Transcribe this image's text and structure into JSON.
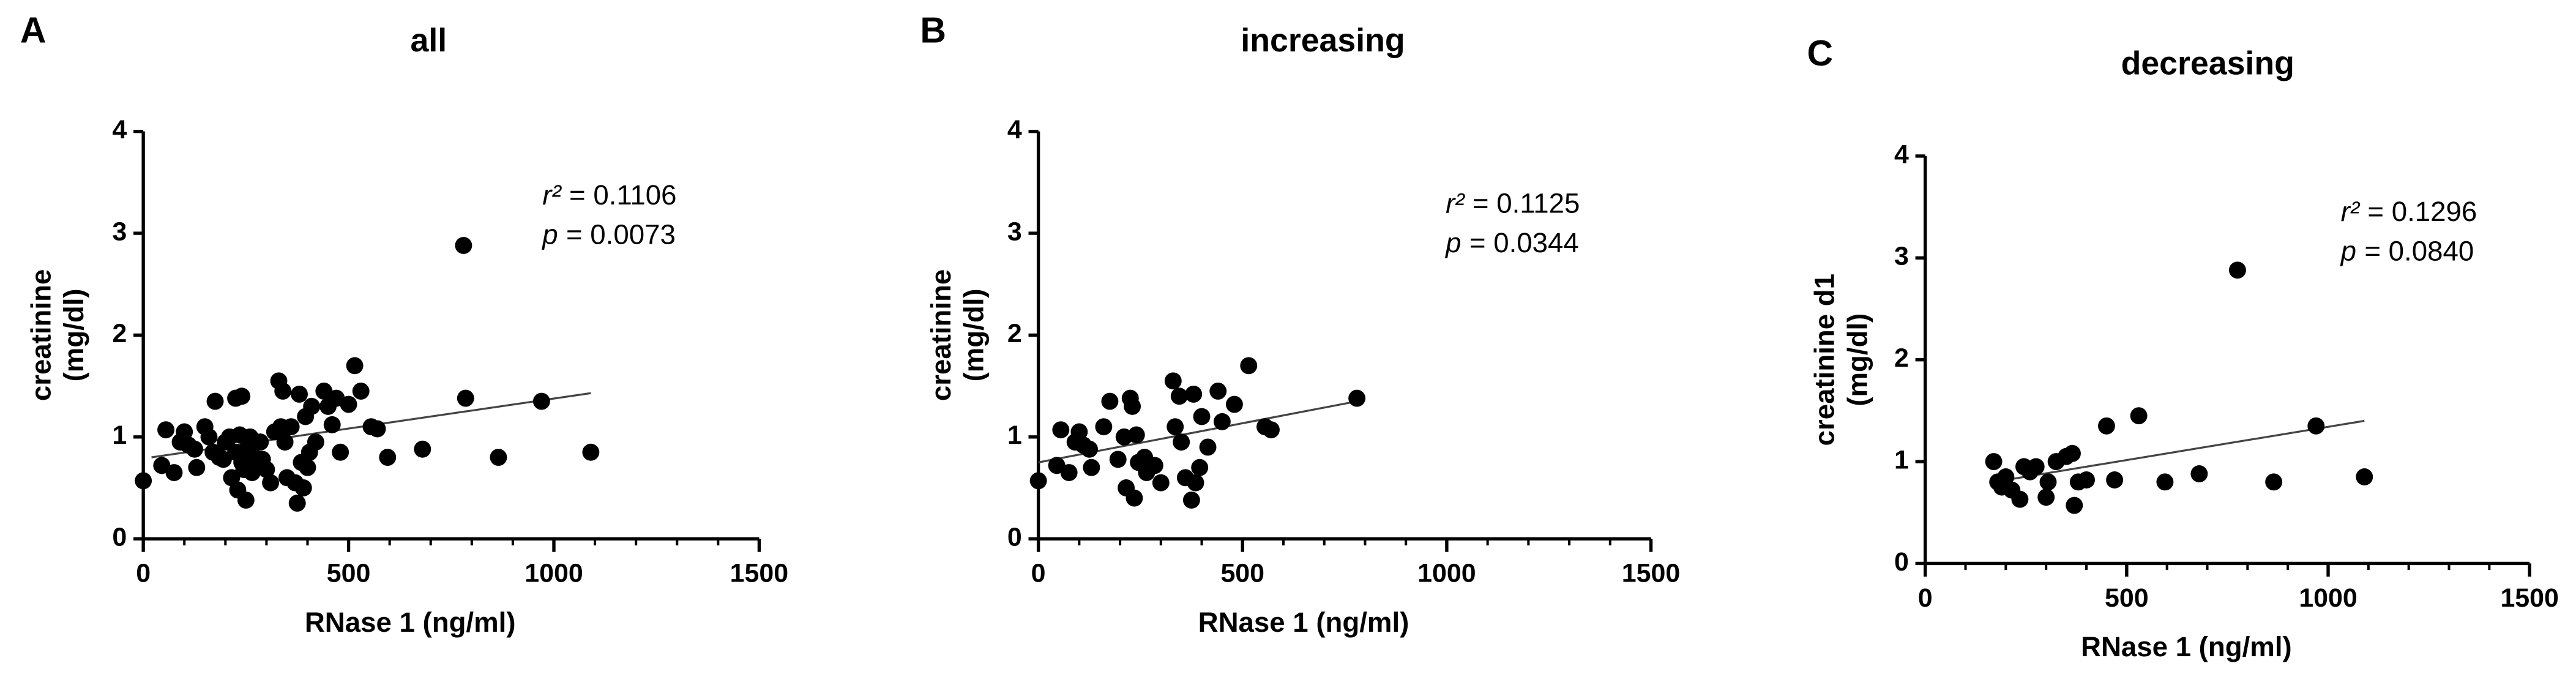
{
  "chart_data": [
    {
      "type": "scatter",
      "panel": "A",
      "title": "all",
      "xlabel": "RNase 1 (ng/ml)",
      "ylabel": [
        "creatinine",
        "(mg/dl)"
      ],
      "xlim": [
        0,
        1500
      ],
      "xticks": [
        0,
        500,
        1000,
        1500
      ],
      "xminorticks": [
        0,
        100,
        200,
        300,
        400,
        500,
        600,
        700,
        800,
        900,
        1000,
        1100,
        1200,
        1300,
        1400,
        1500
      ],
      "ylim": [
        0,
        4
      ],
      "yticks": [
        0,
        1,
        2,
        3,
        4
      ],
      "color": "#000000",
      "annotations": [
        [
          "r²",
          "= 0.1106"
        ],
        [
          "p",
          "= 0.0073"
        ]
      ],
      "fit": {
        "x": [
          20,
          1090
        ],
        "y": [
          0.8,
          1.43
        ]
      },
      "x": [
        0,
        45,
        55,
        75,
        90,
        100,
        110,
        125,
        130,
        150,
        160,
        170,
        175,
        185,
        195,
        200,
        210,
        215,
        225,
        225,
        230,
        235,
        240,
        240,
        245,
        250,
        255,
        260,
        265,
        270,
        275,
        285,
        290,
        300,
        310,
        320,
        330,
        335,
        340,
        345,
        350,
        360,
        370,
        375,
        380,
        385,
        390,
        395,
        400,
        405,
        410,
        420,
        440,
        450,
        460,
        470,
        480,
        500,
        515,
        530,
        555,
        570,
        595,
        680,
        780,
        785,
        865,
        970,
        1090
      ],
      "y": [
        0.57,
        0.72,
        1.07,
        0.65,
        0.95,
        1.05,
        0.92,
        0.88,
        0.7,
        1.1,
        1.0,
        0.85,
        1.35,
        0.8,
        0.78,
        0.95,
        1.0,
        0.6,
        1.38,
        0.85,
        0.48,
        1.02,
        1.4,
        0.75,
        0.68,
        0.38,
        0.9,
        1.0,
        0.65,
        0.8,
        0.72,
        0.95,
        0.78,
        0.68,
        0.55,
        1.05,
        1.55,
        1.1,
        1.45,
        0.95,
        0.6,
        1.1,
        0.55,
        0.35,
        1.42,
        0.75,
        0.5,
        1.2,
        0.7,
        0.85,
        1.3,
        0.95,
        1.45,
        1.3,
        1.12,
        1.38,
        0.85,
        1.32,
        1.7,
        1.45,
        1.1,
        1.08,
        0.8,
        0.88,
        2.88,
        1.38,
        0.8,
        1.35,
        0.85
      ]
    },
    {
      "type": "scatter",
      "panel": "B",
      "title": "increasing",
      "xlabel": "RNase 1 (ng/ml)",
      "ylabel": [
        "creatinine",
        "(mg/dl)"
      ],
      "xlim": [
        0,
        1500
      ],
      "xticks": [
        0,
        500,
        1000,
        1500
      ],
      "xminorticks": [
        0,
        100,
        200,
        300,
        400,
        500,
        600,
        700,
        800,
        900,
        1000,
        1100,
        1200,
        1300,
        1400,
        1500
      ],
      "ylim": [
        0,
        4
      ],
      "yticks": [
        0,
        1,
        2,
        3,
        4
      ],
      "color": "#000000",
      "annotations": [
        [
          "r²",
          "= 0.1125"
        ],
        [
          "p",
          "= 0.0344"
        ]
      ],
      "fit": {
        "x": [
          0,
          780
        ],
        "y": [
          0.75,
          1.35
        ]
      },
      "x": [
        0,
        45,
        55,
        75,
        90,
        100,
        110,
        125,
        130,
        160,
        175,
        195,
        210,
        215,
        225,
        230,
        235,
        240,
        245,
        260,
        265,
        285,
        300,
        330,
        335,
        345,
        350,
        360,
        375,
        380,
        385,
        395,
        400,
        415,
        440,
        450,
        480,
        515,
        555,
        570,
        780
      ],
      "y": [
        0.57,
        0.72,
        1.07,
        0.65,
        0.95,
        1.05,
        0.92,
        0.88,
        0.7,
        1.1,
        1.35,
        0.78,
        1.0,
        0.5,
        1.38,
        1.3,
        0.4,
        1.02,
        0.75,
        0.8,
        0.65,
        0.72,
        0.55,
        1.55,
        1.1,
        1.4,
        0.95,
        0.6,
        0.38,
        1.42,
        0.55,
        0.7,
        1.2,
        0.9,
        1.45,
        1.15,
        1.32,
        1.7,
        1.1,
        1.07,
        1.38
      ]
    },
    {
      "type": "scatter",
      "panel": "C",
      "title": "decreasing",
      "xlabel": "RNase 1 (ng/ml)",
      "ylabel": [
        "creatinine d1",
        "(mg/dl)"
      ],
      "xlim": [
        0,
        1500
      ],
      "xticks": [
        0,
        500,
        1000,
        1500
      ],
      "xminorticks": [
        0,
        100,
        200,
        300,
        400,
        500,
        600,
        700,
        800,
        900,
        1000,
        1100,
        1200,
        1300,
        1400,
        1500
      ],
      "ylim": [
        0,
        4
      ],
      "yticks": [
        0,
        1,
        2,
        3,
        4
      ],
      "color": "#000000",
      "annotations": [
        [
          "r²",
          "= 0.1296"
        ],
        [
          "p",
          "= 0.0840"
        ]
      ],
      "fit": {
        "x": [
          170,
          1090
        ],
        "y": [
          0.8,
          1.4
        ]
      },
      "x": [
        170,
        180,
        190,
        200,
        215,
        235,
        245,
        260,
        275,
        300,
        305,
        325,
        350,
        365,
        370,
        380,
        400,
        450,
        470,
        530,
        595,
        680,
        775,
        865,
        970,
        1090
      ],
      "y": [
        1.0,
        0.8,
        0.75,
        0.85,
        0.72,
        0.63,
        0.95,
        0.9,
        0.95,
        0.65,
        0.8,
        1.0,
        1.05,
        1.08,
        0.57,
        0.8,
        0.82,
        1.35,
        0.82,
        1.45,
        0.8,
        0.88,
        2.88,
        0.8,
        1.35,
        0.85
      ]
    }
  ]
}
